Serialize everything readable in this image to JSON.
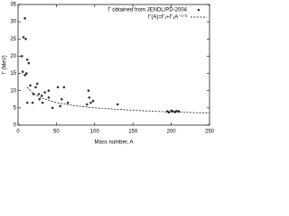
{
  "chart_data": {
    "type": "scatter",
    "xlabel": "Mass number, A",
    "ylabel": "Γ (MeV)",
    "xlim": [
      0,
      250
    ],
    "xticks": [
      0,
      50,
      100,
      150,
      200,
      250
    ],
    "ylim": [
      0,
      35
    ],
    "yticks": [
      0,
      5,
      10,
      15,
      20,
      25,
      30,
      35
    ],
    "series": [
      {
        "name": "Γ obtained from JENDL/PD-2004",
        "kind": "points",
        "color": "#333333",
        "x": [
          9,
          5,
          7,
          10,
          12,
          6,
          9,
          11,
          14,
          16,
          12,
          19,
          20,
          23,
          25,
          27,
          28,
          31,
          32,
          35,
          40,
          40,
          45,
          52,
          55,
          57,
          60,
          65,
          90,
          92,
          93,
          95,
          98,
          130,
          195,
          197,
          200,
          202,
          205,
          207,
          210
        ],
        "values": [
          31,
          20,
          25.5,
          25,
          19,
          15.5,
          14.5,
          15,
          18,
          11.5,
          6.5,
          6.5,
          9,
          11,
          12,
          9,
          7.5,
          8.5,
          6.5,
          9.5,
          10,
          8,
          5,
          11,
          5.5,
          7.5,
          11,
          6.5,
          6,
          10,
          8,
          6.5,
          7,
          6,
          4,
          3.7,
          4.2,
          4,
          3.8,
          4.1,
          4
        ]
      },
      {
        "name": "Γ(A)=Γ₁+Γ₂A⁻¹ᐟ³",
        "kind": "dashed-line",
        "color": "#000000",
        "x": [
          12,
          20,
          30,
          50,
          75,
          100,
          150,
          200,
          250
        ],
        "values": [
          11,
          9.15,
          7.9,
          6.5,
          5.6,
          5,
          4.3,
          3.8,
          3.5
        ]
      }
    ]
  }
}
